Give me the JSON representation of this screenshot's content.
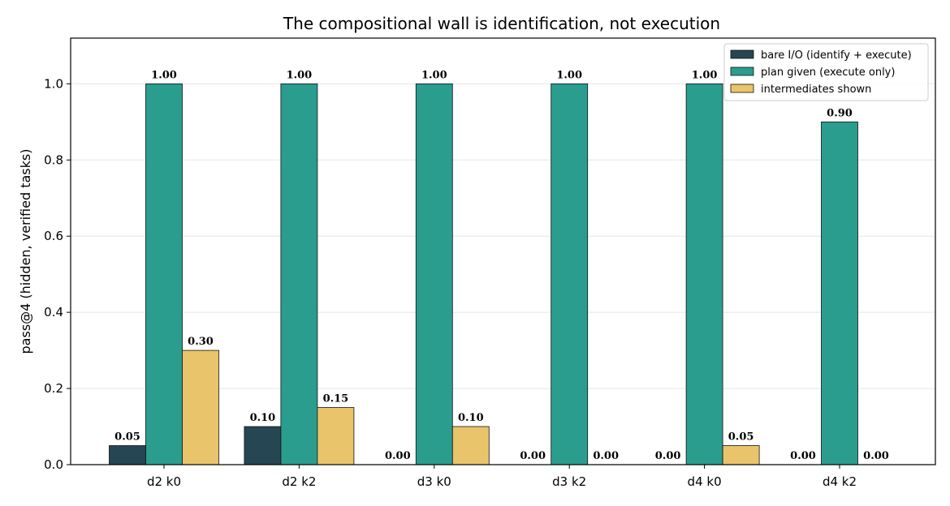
{
  "chart_data": {
    "type": "bar",
    "title": "The compositional wall is identification, not execution",
    "xlabel": "",
    "ylabel": "pass@4 (hidden, verified tasks)",
    "categories": [
      "d2 k0",
      "d2 k2",
      "d3 k0",
      "d3 k2",
      "d4 k0",
      "d4 k2"
    ],
    "series": [
      {
        "name": "bare I/O (identify + execute)",
        "color": "#264653",
        "values": [
          0.05,
          0.1,
          0.0,
          0.0,
          0.0,
          0.0
        ],
        "labels": [
          "0.05",
          "0.10",
          "0.00",
          "0.00",
          "0.00",
          "0.00"
        ]
      },
      {
        "name": "plan given (execute only)",
        "color": "#2a9d8f",
        "values": [
          1.0,
          1.0,
          1.0,
          1.0,
          1.0,
          0.9
        ],
        "labels": [
          "1.00",
          "1.00",
          "1.00",
          "1.00",
          "1.00",
          "0.90"
        ]
      },
      {
        "name": "intermediates shown",
        "color": "#e9c46a",
        "values": [
          0.3,
          0.15,
          0.1,
          0.0,
          0.05,
          0.0
        ],
        "labels": [
          "0.30",
          "0.15",
          "0.10",
          "0.00",
          "0.05",
          "0.00"
        ]
      }
    ],
    "ylim": [
      0,
      1.12
    ],
    "yticks": [
      "0.0",
      "0.2",
      "0.4",
      "0.6",
      "0.8",
      "1.0"
    ],
    "grid": true,
    "legend_position": "upper right"
  }
}
